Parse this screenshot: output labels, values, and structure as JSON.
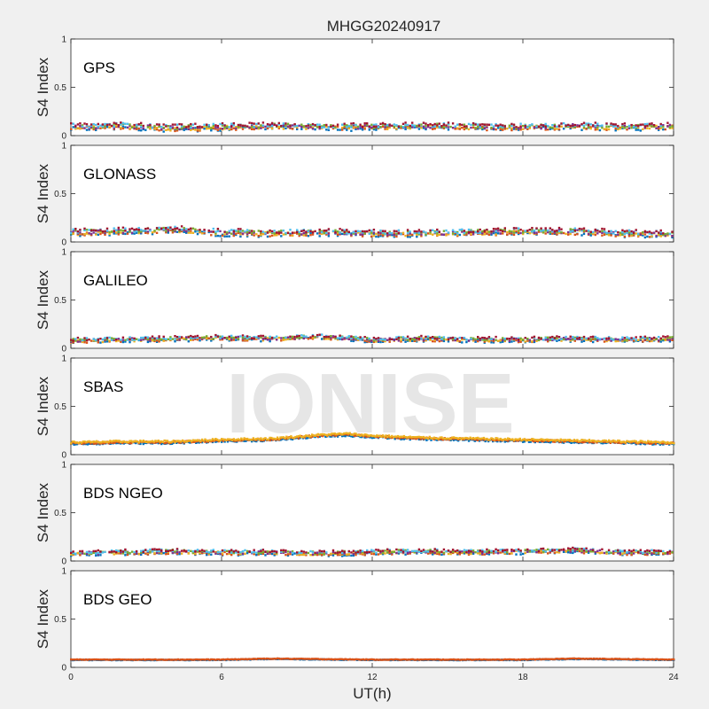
{
  "chart_data": {
    "type": "scatter",
    "title": "MHGG20240917",
    "xlabel": "UT(h)",
    "ylabel": "S4 Index",
    "xlim": [
      0,
      24
    ],
    "ylim": [
      0,
      1
    ],
    "xticks": [
      "0",
      "6",
      "12",
      "18",
      "24"
    ],
    "yticks": [
      "0",
      "0.5",
      "1"
    ],
    "grid": false,
    "watermark": "IONISE",
    "colors": [
      "#0072BD",
      "#D95319",
      "#EDB120",
      "#7E2F8E",
      "#77AC30",
      "#4DBEEE",
      "#A2142F"
    ],
    "panels": [
      {
        "label": "GPS",
        "series_colors": [
          "#0072BD",
          "#D95319",
          "#EDB120",
          "#7E2F8E",
          "#77AC30",
          "#4DBEEE",
          "#A2142F"
        ],
        "x": [
          0,
          2,
          4,
          6,
          8,
          10,
          12,
          14,
          16,
          18,
          20,
          22,
          24
        ],
        "y": [
          0.09,
          0.1,
          0.08,
          0.09,
          0.1,
          0.09,
          0.09,
          0.1,
          0.09,
          0.09,
          0.1,
          0.09,
          0.1
        ],
        "spread": 0.04
      },
      {
        "label": "GLONASS",
        "series_colors": [
          "#0072BD",
          "#D95319",
          "#EDB120",
          "#7E2F8E",
          "#77AC30",
          "#4DBEEE",
          "#A2142F"
        ],
        "x": [
          0,
          2,
          4,
          6,
          8,
          10,
          12,
          14,
          16,
          18,
          20,
          22,
          24
        ],
        "y": [
          0.1,
          0.11,
          0.13,
          0.1,
          0.09,
          0.1,
          0.09,
          0.09,
          0.1,
          0.11,
          0.11,
          0.09,
          0.08
        ],
        "spread": 0.04
      },
      {
        "label": "GALILEO",
        "series_colors": [
          "#0072BD",
          "#D95319",
          "#EDB120",
          "#7E2F8E",
          "#77AC30",
          "#4DBEEE",
          "#A2142F"
        ],
        "x": [
          0,
          2,
          4,
          6,
          8,
          10,
          12,
          14,
          16,
          18,
          20,
          22,
          24
        ],
        "y": [
          0.08,
          0.09,
          0.1,
          0.11,
          0.1,
          0.12,
          0.09,
          0.1,
          0.09,
          0.09,
          0.1,
          0.09,
          0.1
        ],
        "spread": 0.03
      },
      {
        "label": "SBAS",
        "series_colors": [
          "#0072BD",
          "#D95319",
          "#EDB120"
        ],
        "x": [
          0,
          2,
          4,
          6,
          8,
          10,
          11,
          12,
          14,
          16,
          18,
          20,
          22,
          24
        ],
        "y": [
          0.12,
          0.13,
          0.13,
          0.15,
          0.16,
          0.2,
          0.21,
          0.19,
          0.17,
          0.16,
          0.15,
          0.14,
          0.13,
          0.12
        ],
        "spread": 0.02
      },
      {
        "label": "BDS NGEO",
        "series_colors": [
          "#0072BD",
          "#D95319",
          "#EDB120",
          "#7E2F8E",
          "#77AC30",
          "#4DBEEE",
          "#A2142F"
        ],
        "x": [
          0,
          2,
          4,
          6,
          8,
          10,
          12,
          14,
          16,
          18,
          20,
          22,
          24
        ],
        "y": [
          0.08,
          0.09,
          0.1,
          0.09,
          0.09,
          0.08,
          0.09,
          0.1,
          0.09,
          0.1,
          0.11,
          0.09,
          0.09
        ],
        "spread": 0.03
      },
      {
        "label": "BDS GEO",
        "series_colors": [
          "#0072BD",
          "#D95319"
        ],
        "x": [
          0,
          6,
          8,
          12,
          18,
          20,
          24
        ],
        "y": [
          0.08,
          0.08,
          0.09,
          0.08,
          0.08,
          0.09,
          0.08
        ],
        "spread": 0.006
      }
    ]
  }
}
